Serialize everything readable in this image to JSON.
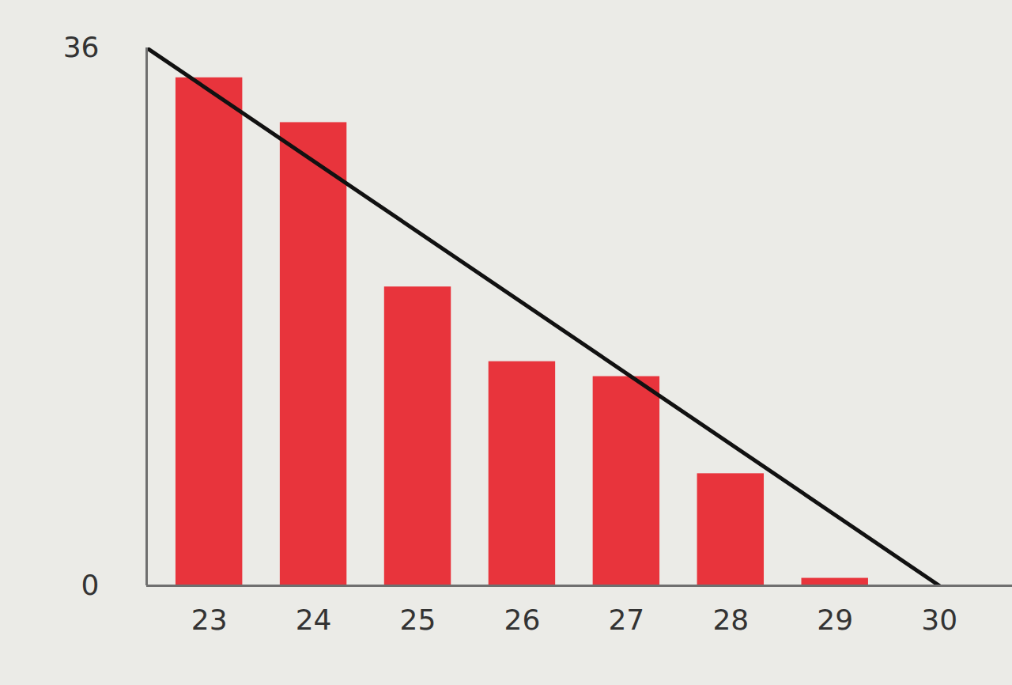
{
  "chart_data": {
    "type": "bar",
    "xlim": [
      22.4,
      30.7
    ],
    "xticks": [
      23,
      24,
      25,
      26,
      27,
      28,
      29,
      30
    ],
    "ylim": [
      0,
      36
    ],
    "yticks": [
      0,
      36
    ],
    "grid": false,
    "series": [
      {
        "type": "bar",
        "color": "#e8343c",
        "x": [
          23,
          24,
          25,
          26,
          27,
          28,
          29
        ],
        "values": [
          34,
          31,
          20,
          15,
          14,
          7.5,
          0.5
        ]
      },
      {
        "type": "line",
        "color": "#111111",
        "x": [
          22.4,
          30
        ],
        "values": [
          36,
          0
        ]
      }
    ]
  }
}
